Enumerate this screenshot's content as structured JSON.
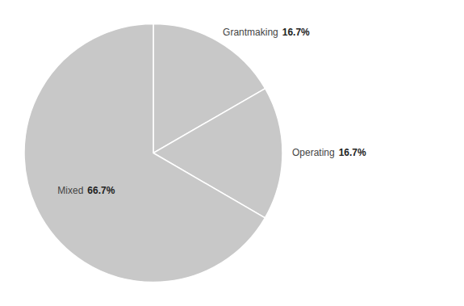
{
  "chart_data": {
    "type": "pie",
    "categories": [
      "Grantmaking",
      "Operating",
      "Mixed"
    ],
    "values": [
      16.7,
      16.7,
      66.7
    ],
    "value_labels": [
      "16.7%",
      "16.7%",
      "66.7%"
    ],
    "colors": [
      "#c8c8c8",
      "#c8c8c8",
      "#c8c8c8"
    ],
    "data_labels": true
  }
}
